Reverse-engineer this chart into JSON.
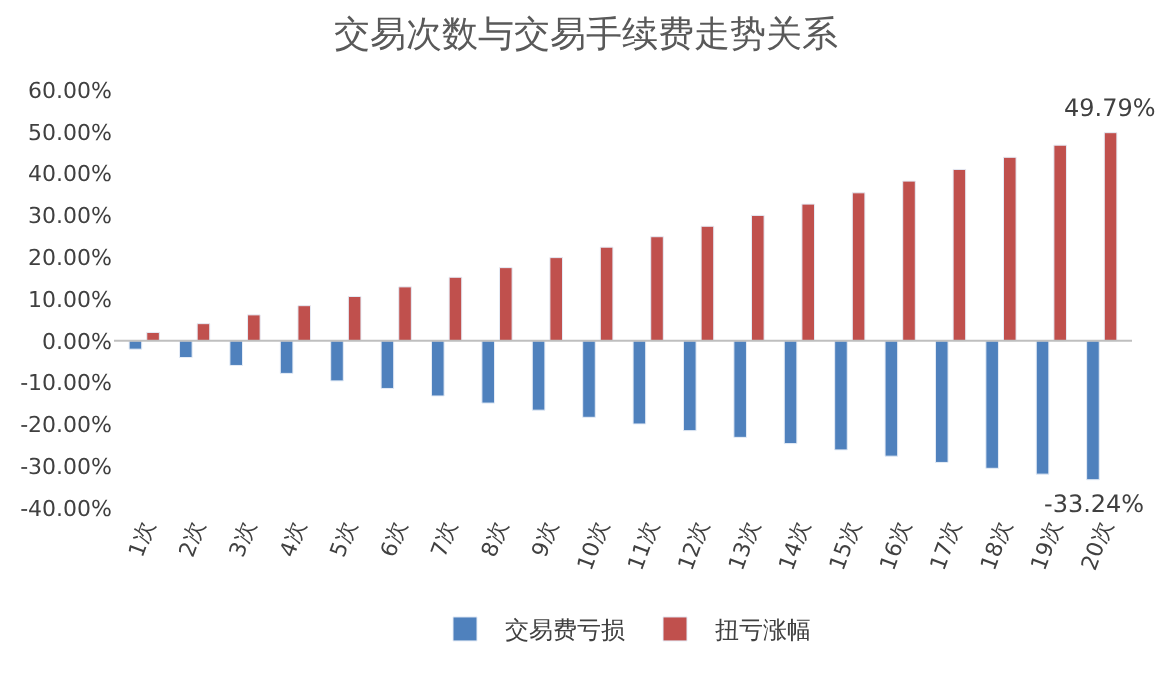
{
  "chart_data": {
    "type": "bar",
    "title": "交易次数与交易手续费走势关系",
    "categories": [
      "1次",
      "2次",
      "3次",
      "4次",
      "5次",
      "6次",
      "7次",
      "8次",
      "9次",
      "10次",
      "11次",
      "12次",
      "13次",
      "14次",
      "15次",
      "16次",
      "17次",
      "18次",
      "19次",
      "20次"
    ],
    "series": [
      {
        "name": "交易费亏损",
        "color": "#4f81bd",
        "values": [
          -2.0,
          -4.0,
          -5.9,
          -7.8,
          -9.6,
          -11.4,
          -13.2,
          -14.9,
          -16.6,
          -18.3,
          -19.9,
          -21.5,
          -23.1,
          -24.6,
          -26.1,
          -27.6,
          -29.1,
          -30.5,
          -31.9,
          -33.24
        ],
        "value_labels": [
          null,
          null,
          null,
          null,
          null,
          null,
          null,
          null,
          null,
          null,
          null,
          null,
          null,
          null,
          null,
          null,
          null,
          null,
          null,
          "-33.24%"
        ]
      },
      {
        "name": "扭亏涨幅",
        "color": "#c0504d",
        "values": [
          2.0,
          4.1,
          6.2,
          8.4,
          10.6,
          12.9,
          15.2,
          17.5,
          19.9,
          22.4,
          24.9,
          27.4,
          30.0,
          32.7,
          35.4,
          38.2,
          41.0,
          43.9,
          46.8,
          49.79
        ],
        "value_labels": [
          null,
          null,
          null,
          null,
          null,
          null,
          null,
          null,
          null,
          null,
          null,
          null,
          null,
          null,
          null,
          null,
          null,
          null,
          null,
          "49.79%"
        ]
      }
    ],
    "ylim": [
      -40,
      60
    ],
    "yticks": [
      {
        "value": -40,
        "label": "-40.00%"
      },
      {
        "value": -30,
        "label": "-30.00%"
      },
      {
        "value": -20,
        "label": "-20.00%"
      },
      {
        "value": -10,
        "label": "-10.00%"
      },
      {
        "value": 0,
        "label": "0.00%"
      },
      {
        "value": 10,
        "label": "10.00%"
      },
      {
        "value": 20,
        "label": "20.00%"
      },
      {
        "value": 30,
        "label": "30.00%"
      },
      {
        "value": 40,
        "label": "40.00%"
      },
      {
        "value": 50,
        "label": "50.00%"
      },
      {
        "value": 60,
        "label": "60.00%"
      }
    ],
    "ref_lines": [
      {
        "axis": "y",
        "value": 0,
        "color": "#bfbfbf"
      }
    ],
    "grid": false,
    "legend": "bottom"
  }
}
